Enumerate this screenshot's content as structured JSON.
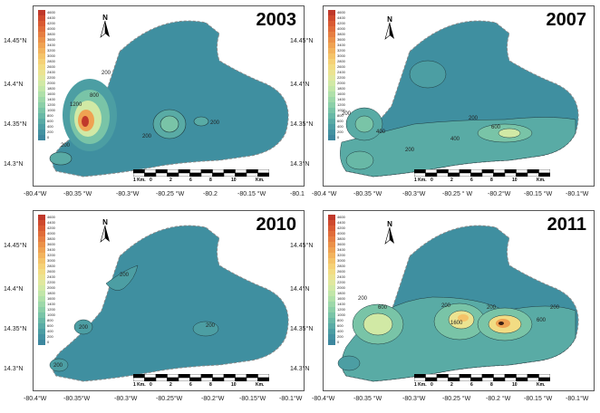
{
  "legend_values": [
    "4600",
    "4400",
    "4200",
    "4000",
    "3800",
    "3600",
    "3400",
    "3200",
    "3000",
    "2800",
    "2600",
    "2400",
    "2200",
    "2000",
    "1800",
    "1600",
    "1400",
    "1200",
    "1000",
    "800",
    "600",
    "400",
    "200",
    "0"
  ],
  "legend_colors": [
    "#c0392b",
    "#cf4a2e",
    "#d95a33",
    "#e06c3a",
    "#e67e42",
    "#eb9149",
    "#efa252",
    "#f2b35d",
    "#f4c369",
    "#f5d176",
    "#f2dc83",
    "#ebe391",
    "#e0e89e",
    "#d1e9a5",
    "#c1e6a8",
    "#afe0a9",
    "#9dd8a9",
    "#8bcfa8",
    "#79c4a7",
    "#68b8a6",
    "#59aba5",
    "#4c9ea3",
    "#4392a1",
    "#3d879e"
  ],
  "colors": {
    "water": "#3f8fa0",
    "land": "#ffffff",
    "contour": "#1f3b40"
  },
  "panels": [
    {
      "year": "2003",
      "y_labels": [
        "14.45°N",
        "14.4°N",
        "14.35°N",
        "14.3°N"
      ],
      "y_side": "left",
      "x_labels": [
        "-80.4°W",
        "-80.35 °W",
        "-80.3°W",
        "-80.25 °W",
        "-80.2",
        "-80.15 °W",
        "-80.1"
      ],
      "contour_labels": [
        "200",
        "800",
        "1200",
        "200",
        "200",
        "200",
        "200",
        "200"
      ],
      "scale": {
        "unit": "Km.",
        "ticks": [
          "0",
          "2",
          "6",
          "8",
          "10"
        ],
        "left": "1 Km."
      }
    },
    {
      "year": "2007",
      "y_labels": [
        "14.45°N",
        "14.4°N",
        "14.35°N",
        "14.3°N"
      ],
      "y_side": "left",
      "x_labels": [
        "-80.4 °W",
        "-80.35 °W",
        "-80.3°W",
        "-80.25 ° W",
        "-80.2°W",
        "-80.15 °W",
        "-80.1°W"
      ],
      "contour_labels": [
        "200",
        "400",
        "200",
        "400",
        "600",
        "200",
        "600",
        "200"
      ],
      "scale": {
        "unit": "Km.",
        "ticks": [
          "0",
          "2",
          "6",
          "8",
          "10"
        ],
        "left": "1 Km."
      }
    },
    {
      "year": "2010",
      "y_labels": [
        "14.45°N",
        "14.4°N",
        "14.35°N",
        "14.3°N"
      ],
      "y_side": "left",
      "x_labels": [
        "-80.4°W",
        "-80.35°W",
        "-80.3°W",
        "-80.25°W",
        "-80.2°W",
        "-80.15°W",
        "-80.1°W"
      ],
      "contour_labels": [
        "200",
        "200",
        "200",
        "200"
      ],
      "scale": {
        "unit": "Km.",
        "ticks": [
          "0",
          "2",
          "6",
          "8",
          "10"
        ],
        "left": "1 Km."
      }
    },
    {
      "year": "2011",
      "y_labels": [
        "14.45°N",
        "14.4°N",
        "14.35°N",
        "14.3°N"
      ],
      "y_side": "left",
      "x_labels": [
        "-80.4°W",
        "-80.35 °W",
        "-80.3°W",
        "-80.25 °W",
        "-80.2 °W",
        "-80.15 °W",
        "-80.1°W"
      ],
      "contour_labels": [
        "600",
        "200",
        "200",
        "1600",
        "200",
        "600",
        "200",
        "200",
        "200"
      ],
      "scale": {
        "unit": "Km.",
        "ticks": [
          "0",
          "2",
          "6",
          "8",
          "10"
        ],
        "left": "1 Km."
      }
    }
  ],
  "north_label": "N"
}
